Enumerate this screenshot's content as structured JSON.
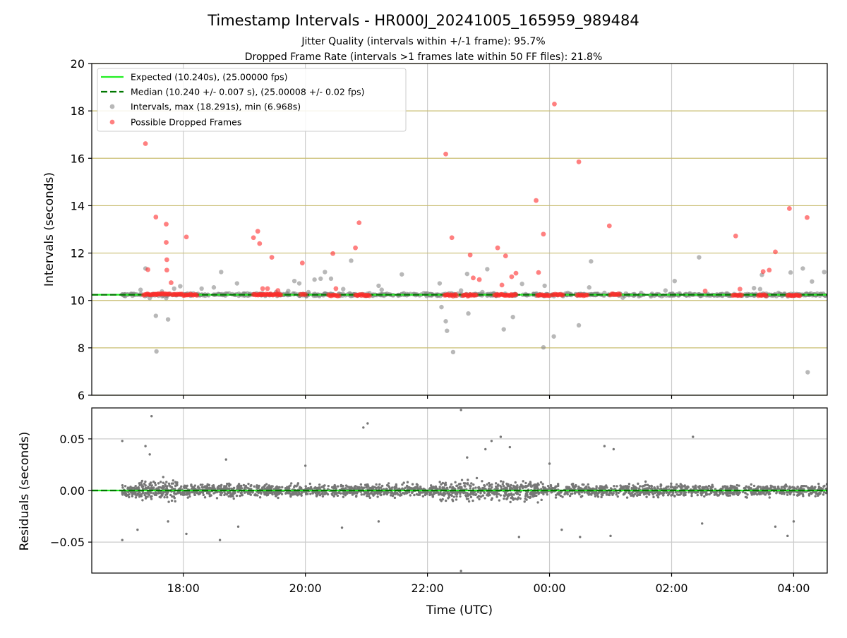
{
  "figure": {
    "title": "Timestamp Intervals - HR000J_20241005_165959_989484",
    "subtitle1": "Jitter Quality (intervals within +/-1 frame): 95.7%",
    "subtitle2": "Dropped Frame Rate (intervals >1 frames late within 50 FF files): 21.8%"
  },
  "colors": {
    "expected": "#22ee22",
    "median": "#007700",
    "intervals": "#888888",
    "dropped": "#ff2b2b",
    "residuals": "#777777",
    "hgrid_top": "#c9bd70",
    "grid": "#cccccc"
  },
  "chart_data": [
    {
      "type": "scatter",
      "title": "",
      "xlabel": "",
      "ylabel": "Intervals (seconds)",
      "x_unit": "hours since 00:00 UTC of 2024-10-05",
      "xlim": [
        16.5,
        28.55
      ],
      "ylim": [
        6,
        20
      ],
      "x_ticks": [
        {
          "value": 18,
          "label": "18:00"
        },
        {
          "value": 20,
          "label": "20:00"
        },
        {
          "value": 22,
          "label": "22:00"
        },
        {
          "value": 24,
          "label": "00:00"
        },
        {
          "value": 26,
          "label": "02:00"
        },
        {
          "value": 28,
          "label": "04:00"
        }
      ],
      "y_ticks": [
        6,
        8,
        10,
        12,
        14,
        16,
        18,
        20
      ],
      "grid": true,
      "legend_position": "top-left",
      "legend": [
        {
          "label": "Expected (10.240s), (25.00000 fps)",
          "kind": "line",
          "color": "#22ee22"
        },
        {
          "label": "Median (10.240 +/- 0.007 s), (25.00008 +/- 0.02 fps)",
          "kind": "dashed",
          "color": "#007700"
        },
        {
          "label": "Intervals, max (18.291s), min (6.968s)",
          "kind": "point",
          "color": "#888888"
        },
        {
          "label": "Possible Dropped Frames",
          "kind": "point",
          "color": "#ff2b2b"
        }
      ],
      "expected_value": 10.24,
      "median_value": 10.24,
      "series": [
        {
          "name": "Intervals, max (18.291s), min (6.968s)",
          "points": [
            [
              17.0,
              10.25
            ],
            [
              17.3,
              10.45
            ],
            [
              17.38,
              11.35
            ],
            [
              17.45,
              10.1
            ],
            [
              17.55,
              9.35
            ],
            [
              17.56,
              7.85
            ],
            [
              17.65,
              10.38
            ],
            [
              17.72,
              10.1
            ],
            [
              17.75,
              9.2
            ],
            [
              17.85,
              10.5
            ],
            [
              17.95,
              10.6
            ],
            [
              18.3,
              10.5
            ],
            [
              18.5,
              10.55
            ],
            [
              18.62,
              11.2
            ],
            [
              18.75,
              10.3
            ],
            [
              18.88,
              10.72
            ],
            [
              19.05,
              10.3
            ],
            [
              19.2,
              10.3
            ],
            [
              19.52,
              10.35
            ],
            [
              19.72,
              10.4
            ],
            [
              19.82,
              10.82
            ],
            [
              19.9,
              10.72
            ],
            [
              20.05,
              10.35
            ],
            [
              20.15,
              10.88
            ],
            [
              20.25,
              10.92
            ],
            [
              20.32,
              11.2
            ],
            [
              20.42,
              10.92
            ],
            [
              20.62,
              10.48
            ],
            [
              20.75,
              11.68
            ],
            [
              21.2,
              10.62
            ],
            [
              21.25,
              10.45
            ],
            [
              21.58,
              11.1
            ],
            [
              22.0,
              10.3
            ],
            [
              22.2,
              10.72
            ],
            [
              22.23,
              9.72
            ],
            [
              22.3,
              9.12
            ],
            [
              22.32,
              8.72
            ],
            [
              22.42,
              7.82
            ],
            [
              22.55,
              10.42
            ],
            [
              22.65,
              11.12
            ],
            [
              22.67,
              9.45
            ],
            [
              22.9,
              10.35
            ],
            [
              22.98,
              11.32
            ],
            [
              23.25,
              8.78
            ],
            [
              23.4,
              9.3
            ],
            [
              23.55,
              10.7
            ],
            [
              23.9,
              8.02
            ],
            [
              23.92,
              10.62
            ],
            [
              24.07,
              8.48
            ],
            [
              24.3,
              10.32
            ],
            [
              24.48,
              8.95
            ],
            [
              24.65,
              10.55
            ],
            [
              24.68,
              11.65
            ],
            [
              24.9,
              10.32
            ],
            [
              25.2,
              10.12
            ],
            [
              25.5,
              10.32
            ],
            [
              25.9,
              10.42
            ],
            [
              26.05,
              10.82
            ],
            [
              26.3,
              10.3
            ],
            [
              26.45,
              11.82
            ],
            [
              26.9,
              10.3
            ],
            [
              27.35,
              10.52
            ],
            [
              27.45,
              10.48
            ],
            [
              27.48,
              11.08
            ],
            [
              27.75,
              10.32
            ],
            [
              27.95,
              11.18
            ],
            [
              28.15,
              11.35
            ],
            [
              28.23,
              6.97
            ],
            [
              28.3,
              10.8
            ],
            [
              28.5,
              11.2
            ]
          ]
        },
        {
          "name": "Possible Dropped Frames",
          "points": [
            [
              17.38,
              16.62
            ],
            [
              17.42,
              11.3
            ],
            [
              17.55,
              13.52
            ],
            [
              17.72,
              13.22
            ],
            [
              17.72,
              12.45
            ],
            [
              17.73,
              11.72
            ],
            [
              17.73,
              11.28
            ],
            [
              17.8,
              10.75
            ],
            [
              18.05,
              12.68
            ],
            [
              19.15,
              12.65
            ],
            [
              19.22,
              12.92
            ],
            [
              19.25,
              12.4
            ],
            [
              19.3,
              10.5
            ],
            [
              19.38,
              10.5
            ],
            [
              19.45,
              11.82
            ],
            [
              19.55,
              10.42
            ],
            [
              19.95,
              11.58
            ],
            [
              20.45,
              11.98
            ],
            [
              20.5,
              10.5
            ],
            [
              20.82,
              12.22
            ],
            [
              20.88,
              13.28
            ],
            [
              22.3,
              16.18
            ],
            [
              22.4,
              12.65
            ],
            [
              22.7,
              11.92
            ],
            [
              22.75,
              10.95
            ],
            [
              22.85,
              10.88
            ],
            [
              23.15,
              12.22
            ],
            [
              23.22,
              10.65
            ],
            [
              23.28,
              11.88
            ],
            [
              23.38,
              11.0
            ],
            [
              23.45,
              11.15
            ],
            [
              23.78,
              14.22
            ],
            [
              23.82,
              11.18
            ],
            [
              23.9,
              12.8
            ],
            [
              24.08,
              18.29
            ],
            [
              24.48,
              15.85
            ],
            [
              24.98,
              13.15
            ],
            [
              26.55,
              10.4
            ],
            [
              27.05,
              12.72
            ],
            [
              27.12,
              10.48
            ],
            [
              27.5,
              11.22
            ],
            [
              27.6,
              11.28
            ],
            [
              27.7,
              12.05
            ],
            [
              27.93,
              13.88
            ],
            [
              28.22,
              13.5
            ]
          ],
          "clusters": [
            [
              17.35,
              17.55,
              10.25
            ],
            [
              17.55,
              17.78,
              10.27
            ],
            [
              17.82,
              17.98,
              10.25
            ],
            [
              18.0,
              18.22,
              10.23
            ],
            [
              19.15,
              19.6,
              10.25
            ],
            [
              19.92,
              20.0,
              10.25
            ],
            [
              20.38,
              20.55,
              10.22
            ],
            [
              20.82,
              21.05,
              10.23
            ],
            [
              22.28,
              22.48,
              10.22
            ],
            [
              22.58,
              22.8,
              10.22
            ],
            [
              23.1,
              23.45,
              10.23
            ],
            [
              23.8,
              24.0,
              10.22
            ],
            [
              24.05,
              24.22,
              10.25
            ],
            [
              24.45,
              24.62,
              10.22
            ],
            [
              25.0,
              25.15,
              10.25
            ],
            [
              27.0,
              27.15,
              10.22
            ],
            [
              27.42,
              27.55,
              10.22
            ],
            [
              27.9,
              28.1,
              10.22
            ]
          ]
        }
      ]
    },
    {
      "type": "scatter",
      "title": "",
      "xlabel": "Time (UTC)",
      "ylabel": "Residuals (seconds)",
      "xlim": [
        16.5,
        28.55
      ],
      "ylim": [
        -0.08,
        0.08
      ],
      "x_ticks": [
        {
          "value": 18,
          "label": "18:00"
        },
        {
          "value": 20,
          "label": "20:00"
        },
        {
          "value": 22,
          "label": "22:00"
        },
        {
          "value": 24,
          "label": "00:00"
        },
        {
          "value": 26,
          "label": "02:00"
        },
        {
          "value": 28,
          "label": "04:00"
        }
      ],
      "y_ticks": [
        {
          "value": -0.05,
          "label": "−0.05"
        },
        {
          "value": 0.0,
          "label": "0.00"
        },
        {
          "value": 0.05,
          "label": "0.05"
        }
      ],
      "grid": true,
      "residual_x_start": 17.0,
      "residual_x_end": 28.55,
      "outliers": [
        [
          17.0,
          0.048
        ],
        [
          17.0,
          -0.048
        ],
        [
          17.25,
          -0.038
        ],
        [
          17.38,
          0.043
        ],
        [
          17.45,
          0.035
        ],
        [
          17.48,
          0.072
        ],
        [
          17.75,
          -0.03
        ],
        [
          18.05,
          -0.042
        ],
        [
          18.6,
          -0.048
        ],
        [
          18.7,
          0.03
        ],
        [
          18.9,
          -0.035
        ],
        [
          20.0,
          0.024
        ],
        [
          20.6,
          -0.036
        ],
        [
          20.95,
          0.061
        ],
        [
          21.02,
          0.065
        ],
        [
          21.2,
          -0.03
        ],
        [
          22.55,
          0.078
        ],
        [
          22.55,
          -0.078
        ],
        [
          22.65,
          0.032
        ],
        [
          22.95,
          0.04
        ],
        [
          23.05,
          0.048
        ],
        [
          23.2,
          0.052
        ],
        [
          23.35,
          0.042
        ],
        [
          23.5,
          -0.045
        ],
        [
          24.0,
          0.026
        ],
        [
          24.2,
          -0.038
        ],
        [
          24.5,
          -0.045
        ],
        [
          24.9,
          0.043
        ],
        [
          25.05,
          0.04
        ],
        [
          25.0,
          -0.044
        ],
        [
          26.35,
          0.052
        ],
        [
          26.5,
          -0.032
        ],
        [
          27.7,
          -0.035
        ],
        [
          27.9,
          -0.044
        ],
        [
          28.0,
          -0.03
        ]
      ]
    }
  ]
}
